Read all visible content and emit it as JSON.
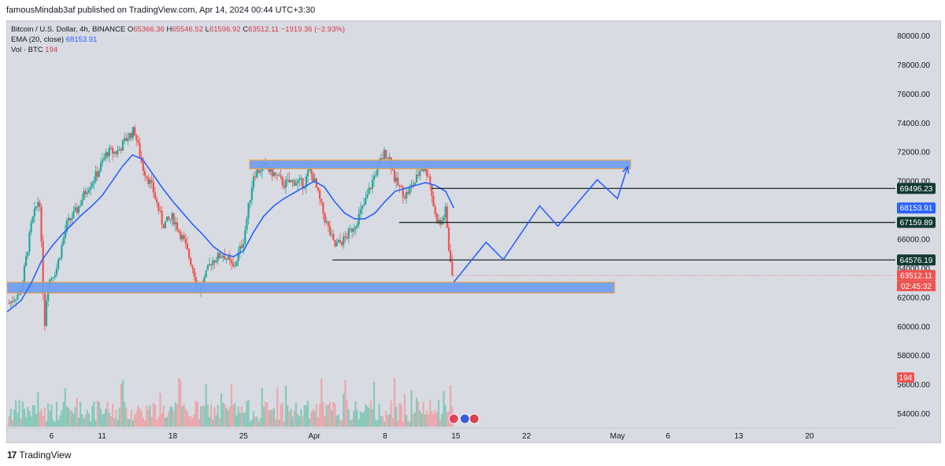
{
  "header": {
    "published_text": "famousMindab3af published on TradingView.com, Apr 14, 2024 00:44 UTC+3:30"
  },
  "legend": {
    "symbol": "Bitcoin / U.S. Dollar, 4h, BINANCE",
    "ohlc": [
      {
        "key": "O",
        "value": "65366.36"
      },
      {
        "key": "H",
        "value": "65546.52"
      },
      {
        "key": "L",
        "value": "61596.92"
      },
      {
        "key": "C",
        "value": "63512.11"
      }
    ],
    "change": "−1919.36 (−2.93%)",
    "ema_label": "EMA (20, close)",
    "ema_value": "68153.91",
    "vol_label": "Vol · BTC",
    "vol_value": "194"
  },
  "footer": {
    "brand": "TradingView",
    "mark": "17"
  },
  "colors": {
    "background": "#d8dbe2",
    "up": "#26a69a",
    "down": "#ef5350",
    "ema": "#2962ff",
    "zone_fill": "#6f9ff0",
    "zone_border": "#f0a040",
    "level_line": "#1b2e2a",
    "level_tag": "#123a33",
    "projection": "#2962ff"
  },
  "chart_data": {
    "type": "candlestick",
    "symbol": "Bitcoin / U.S. Dollar",
    "interval": "4h",
    "exchange": "BINANCE",
    "ylim": [
      53000,
      81000
    ],
    "y_ticks": [
      54000,
      56000,
      58000,
      60000,
      62000,
      64000,
      66000,
      68000,
      70000,
      72000,
      74000,
      76000,
      78000,
      80000
    ],
    "x_ticks": [
      {
        "label": "6",
        "pos": 6
      },
      {
        "label": "11",
        "pos": 11
      },
      {
        "label": "18",
        "pos": 18
      },
      {
        "label": "25",
        "pos": 25
      },
      {
        "label": "Apr",
        "pos": 32
      },
      {
        "label": "8",
        "pos": 39
      },
      {
        "label": "15",
        "pos": 46
      },
      {
        "label": "22",
        "pos": 53
      },
      {
        "label": "May",
        "pos": 62
      },
      {
        "label": "6",
        "pos": 67
      },
      {
        "label": "13",
        "pos": 74
      },
      {
        "label": "20",
        "pos": 81
      }
    ],
    "x_range": [
      1.6,
      89.5
    ],
    "price_path": [
      [
        1.8,
        61600
      ],
      [
        3,
        62500
      ],
      [
        4,
        67000
      ],
      [
        4.8,
        69000
      ],
      [
        5.3,
        60000
      ],
      [
        5.6,
        63000
      ],
      [
        6.5,
        64000
      ],
      [
        7.5,
        67000
      ],
      [
        8.5,
        68000
      ],
      [
        9.5,
        69500
      ],
      [
        10.5,
        70500
      ],
      [
        11.5,
        72000
      ],
      [
        12.5,
        72000
      ],
      [
        13.5,
        73000
      ],
      [
        14.2,
        73500
      ],
      [
        15,
        71000
      ],
      [
        16,
        69500
      ],
      [
        17,
        67000
      ],
      [
        18,
        67500
      ],
      [
        19,
        66000
      ],
      [
        20,
        64000
      ],
      [
        20.5,
        62500
      ],
      [
        21,
        63000
      ],
      [
        21.8,
        64500
      ],
      [
        23,
        65000
      ],
      [
        24,
        64000
      ],
      [
        25,
        66000
      ],
      [
        26,
        70500
      ],
      [
        27,
        71000
      ],
      [
        28,
        70500
      ],
      [
        29,
        69800
      ],
      [
        30,
        70000
      ],
      [
        31,
        69800
      ],
      [
        31.5,
        70800
      ],
      [
        32,
        70000
      ],
      [
        33,
        67500
      ],
      [
        34,
        65500
      ],
      [
        35,
        66000
      ],
      [
        36,
        67000
      ],
      [
        37,
        68500
      ],
      [
        38,
        70500
      ],
      [
        39,
        72000
      ],
      [
        39.5,
        71500
      ],
      [
        40,
        70000
      ],
      [
        41,
        69000
      ],
      [
        42,
        70000
      ],
      [
        42.6,
        71000
      ],
      [
        43.3,
        70500
      ],
      [
        44,
        67500
      ],
      [
        44.5,
        67000
      ],
      [
        45,
        68000
      ],
      [
        45.3,
        65366
      ],
      [
        45.8,
        63512
      ]
    ],
    "series": [
      {
        "name": "EMA (20, close)",
        "x": [
          1.6,
          3,
          4,
          5,
          6,
          7,
          8,
          9,
          10,
          11,
          12,
          13,
          14,
          15,
          16,
          17,
          18,
          19,
          20,
          21,
          22,
          23,
          24,
          25,
          26,
          27,
          28,
          29,
          30,
          31,
          32,
          33,
          34,
          35,
          36,
          37,
          38,
          39,
          40,
          41,
          42,
          43,
          44,
          45,
          45.8
        ],
        "values": [
          61000,
          61800,
          63000,
          64500,
          65500,
          66300,
          67000,
          67700,
          68300,
          69000,
          70000,
          71000,
          71800,
          71500,
          70500,
          69500,
          68600,
          67800,
          67000,
          66300,
          65500,
          65000,
          64800,
          65200,
          66500,
          67600,
          68300,
          68800,
          69200,
          69600,
          70000,
          69600,
          68600,
          67800,
          67400,
          67400,
          67800,
          68600,
          69300,
          69500,
          69700,
          69900,
          69700,
          69300,
          68150
        ]
      }
    ],
    "volume": {
      "label": "Vol · BTC",
      "last": 194,
      "ylim": [
        0,
        300
      ]
    },
    "horizontal_levels": [
      {
        "value": 69496.23,
        "label": "69496.23",
        "x_start": 43.6
      },
      {
        "value": 67159.89,
        "label": "67159.89",
        "x_start": 40.4
      },
      {
        "value": 64576.19,
        "label": "64576.19",
        "x_start": 33.8
      }
    ],
    "price_tags": [
      {
        "value": 68153.91,
        "label": "68153.91",
        "kind": "ema"
      },
      {
        "value": 63512.11,
        "label": "63512.11",
        "kind": "last",
        "countdown": "02:45:32"
      }
    ],
    "zones": [
      {
        "from": 70850,
        "to": 71450,
        "x_start": 25.6,
        "x_end": 63.3
      },
      {
        "from": 62300,
        "to": 63050,
        "x_start": 1.6,
        "x_end": 61.7
      }
    ],
    "projection_path": [
      [
        45.8,
        63050
      ],
      [
        49,
        65800
      ],
      [
        50.7,
        64600
      ],
      [
        54.3,
        68300
      ],
      [
        56.1,
        66900
      ],
      [
        60,
        70100
      ],
      [
        62,
        68800
      ],
      [
        63,
        71000
      ]
    ]
  }
}
